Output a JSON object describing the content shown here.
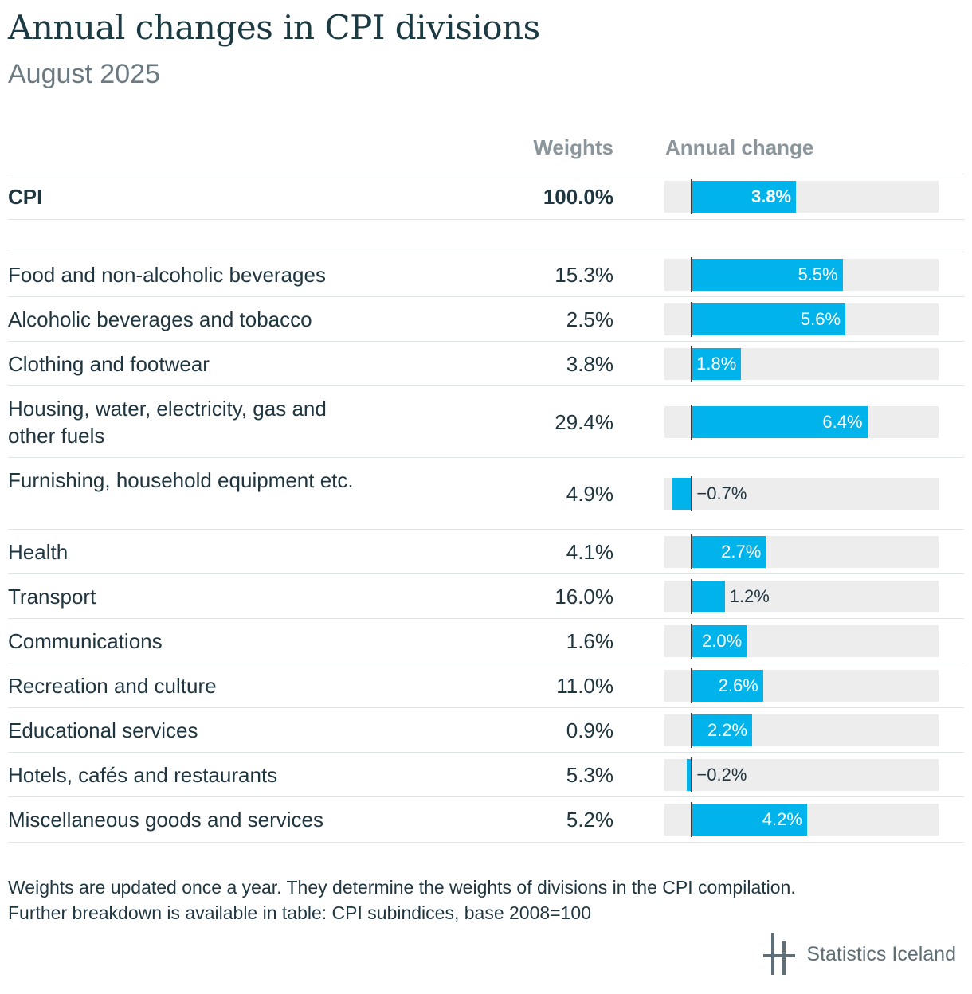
{
  "title": "Annual changes in CPI divisions",
  "subtitle": "August 2025",
  "headers": {
    "weights": "Weights",
    "change": "Annual change"
  },
  "chart_data": {
    "type": "bar",
    "orientation": "horizontal",
    "xlim": [
      -1,
      9
    ],
    "rows": [
      {
        "label": "CPI",
        "weight": "100.0%",
        "value": 3.8,
        "value_label": "3.8%",
        "bold": true
      },
      {
        "label": "Food and non-alcoholic beverages",
        "weight": "15.3%",
        "value": 5.5,
        "value_label": "5.5%"
      },
      {
        "label": "Alcoholic beverages and tobacco",
        "weight": "2.5%",
        "value": 5.6,
        "value_label": "5.6%"
      },
      {
        "label": "Clothing and footwear",
        "weight": "3.8%",
        "value": 1.8,
        "value_label": "1.8%"
      },
      {
        "label": "Housing, water, electricity, gas and other fuels",
        "weight": "29.4%",
        "value": 6.4,
        "value_label": "6.4%"
      },
      {
        "label": "Furnishing, household equipment etc.",
        "weight": "4.9%",
        "value": -0.7,
        "value_label": "−0.7%"
      },
      {
        "label": "Health",
        "weight": "4.1%",
        "value": 2.7,
        "value_label": "2.7%"
      },
      {
        "label": "Transport",
        "weight": "16.0%",
        "value": 1.2,
        "value_label": "1.2%"
      },
      {
        "label": "Communications",
        "weight": "1.6%",
        "value": 2.0,
        "value_label": "2.0%"
      },
      {
        "label": "Recreation and culture",
        "weight": "11.0%",
        "value": 2.6,
        "value_label": "2.6%"
      },
      {
        "label": "Educational services",
        "weight": "0.9%",
        "value": 2.2,
        "value_label": "2.2%"
      },
      {
        "label": "Hotels, cafés and restaurants",
        "weight": "5.3%",
        "value": -0.2,
        "value_label": "−0.2%"
      },
      {
        "label": "Miscellaneous goods and services",
        "weight": "5.2%",
        "value": 4.2,
        "value_label": "4.2%"
      }
    ]
  },
  "note": {
    "line1": "Weights are updated once a year. They determine the weights of divisions in the CPI compilation.",
    "line2": "Further breakdown is available in table: CPI subindices, base 2008=100"
  },
  "logo": {
    "text": "Statistics Iceland",
    "icon": "statistics-iceland-logo-icon"
  },
  "colors": {
    "bar": "#00b3ea",
    "track": "#ededed",
    "title": "#1c3a44"
  }
}
